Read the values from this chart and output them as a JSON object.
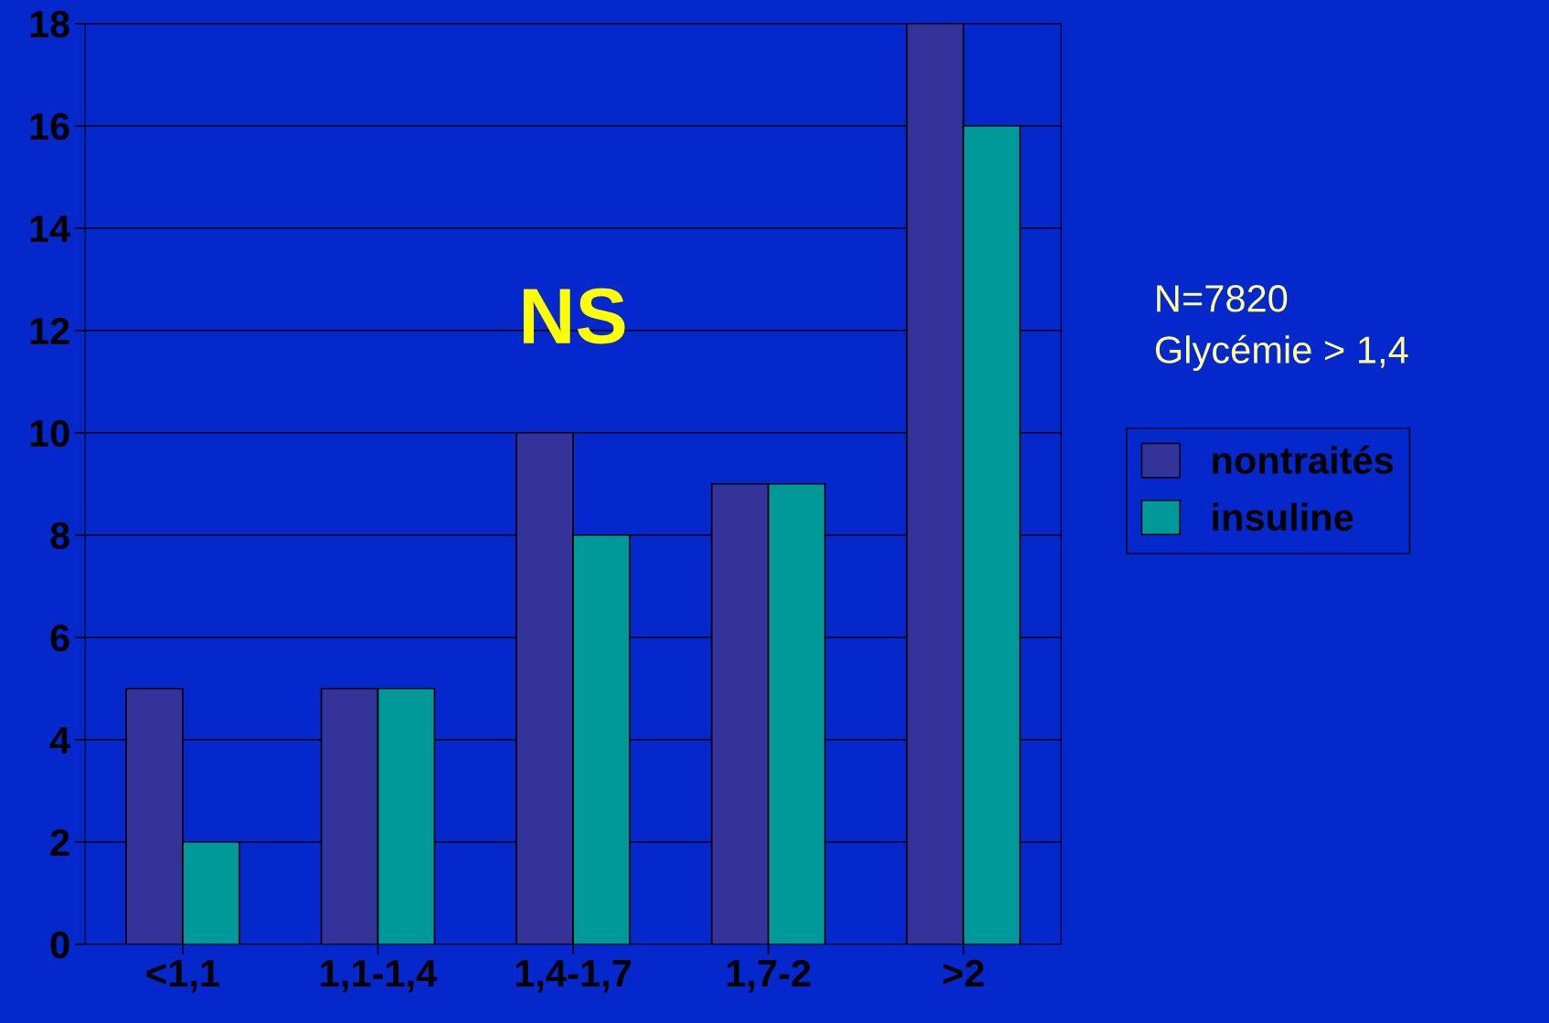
{
  "chart_data": {
    "type": "bar",
    "categories": [
      "<1,1",
      "1,1-1,4",
      "1,4-1,7",
      "1,7-2",
      ">2"
    ],
    "series": [
      {
        "name": "nontraités",
        "color": "#333399",
        "values": [
          5,
          5,
          10,
          9,
          18
        ]
      },
      {
        "name": "insuline",
        "color": "#009999",
        "values": [
          2,
          5,
          8,
          9,
          16
        ]
      }
    ],
    "ylim": [
      0,
      18
    ],
    "yticks": [
      0,
      2,
      4,
      6,
      8,
      10,
      12,
      14,
      16,
      18
    ],
    "grid": "y",
    "legend": "right",
    "annotations": [
      "NS",
      "N=7820",
      "Glycémie > 1,4"
    ]
  }
}
